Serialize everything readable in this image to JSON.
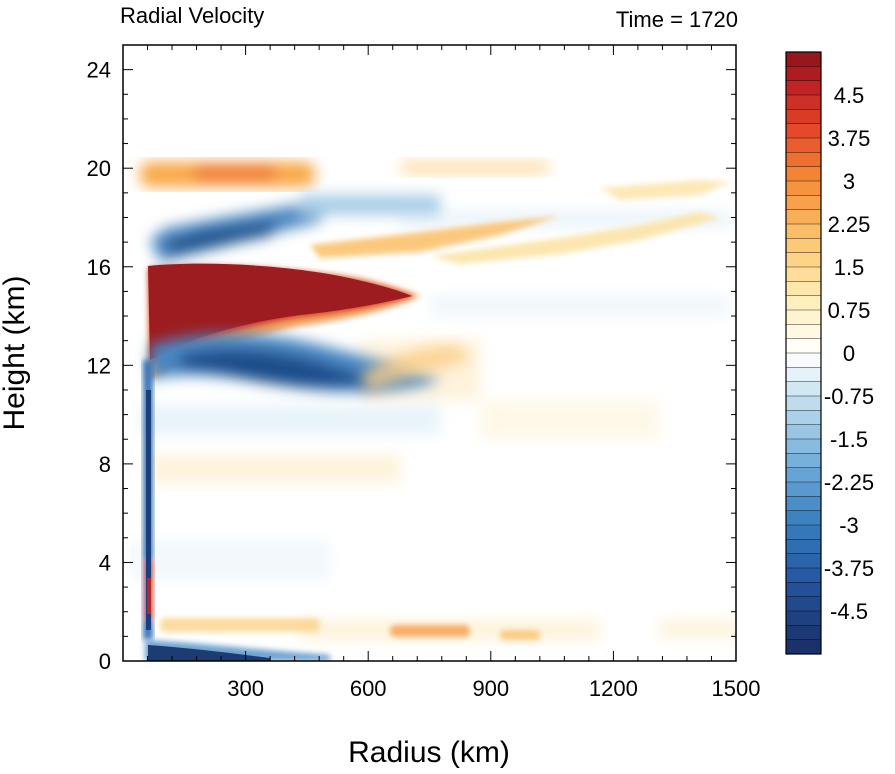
{
  "chart_data": {
    "type": "heatmap",
    "title_left": "Radial Velocity",
    "title_right": "Time = 1720",
    "xlabel": "Radius (km)",
    "ylabel": "Height (km)",
    "xlim": [
      0,
      1500
    ],
    "ylim": [
      0,
      25
    ],
    "x_ticks": [
      300,
      600,
      900,
      1200,
      1500
    ],
    "x_tick_labels": [
      "300",
      "600",
      "900",
      "1200",
      "1500"
    ],
    "y_ticks": [
      0,
      4,
      8,
      12,
      16,
      20,
      24
    ],
    "y_tick_labels": [
      "0",
      "4",
      "8",
      "12",
      "16",
      "20",
      "24"
    ],
    "colorbar": {
      "min": -5.25,
      "max": 5.25,
      "step": 0.25,
      "tick_values": [
        4.5,
        3.75,
        3,
        2.25,
        1.5,
        0.75,
        0,
        -0.75,
        -1.5,
        -2.25,
        -3,
        -3.75,
        -4.5
      ],
      "tick_labels": [
        "4.5",
        "3.75",
        "3",
        "2.25",
        "1.5",
        "0.75",
        "0",
        "-0.75",
        "-1.5",
        "-2.25",
        "-3",
        "-3.75",
        "-4.5"
      ]
    },
    "features": [
      {
        "sign": "positive",
        "value": 5.25,
        "radius": [
          70,
          720
        ],
        "height": [
          12,
          16
        ]
      },
      {
        "sign": "negative",
        "value": -4.0,
        "radius": [
          100,
          550
        ],
        "height": [
          10.5,
          13
        ]
      },
      {
        "sign": "negative",
        "value": -4.0,
        "radius": [
          90,
          380
        ],
        "height": [
          16.3,
          18.5
        ]
      },
      {
        "sign": "positive",
        "value": 2.25,
        "radius": [
          80,
          430
        ],
        "height": [
          19.5,
          21
        ]
      },
      {
        "sign": "positive",
        "value": 0.75,
        "radius": [
          650,
          1050
        ],
        "height": [
          19.5,
          20.5
        ]
      },
      {
        "sign": "negative",
        "value": -5.0,
        "radius": [
          60,
          380
        ],
        "height": [
          0,
          1
        ]
      },
      {
        "sign": "negative",
        "value": -5.0,
        "radius": [
          60,
          80
        ],
        "height": [
          3,
          10
        ]
      },
      {
        "sign": "positive",
        "value": 2.25,
        "radius": [
          490,
          760
        ],
        "height": [
          16.5,
          17.5
        ]
      },
      {
        "sign": "positive",
        "value": 1.5,
        "radius": [
          1000,
          1400
        ],
        "height": [
          16.5,
          18
        ]
      }
    ]
  }
}
